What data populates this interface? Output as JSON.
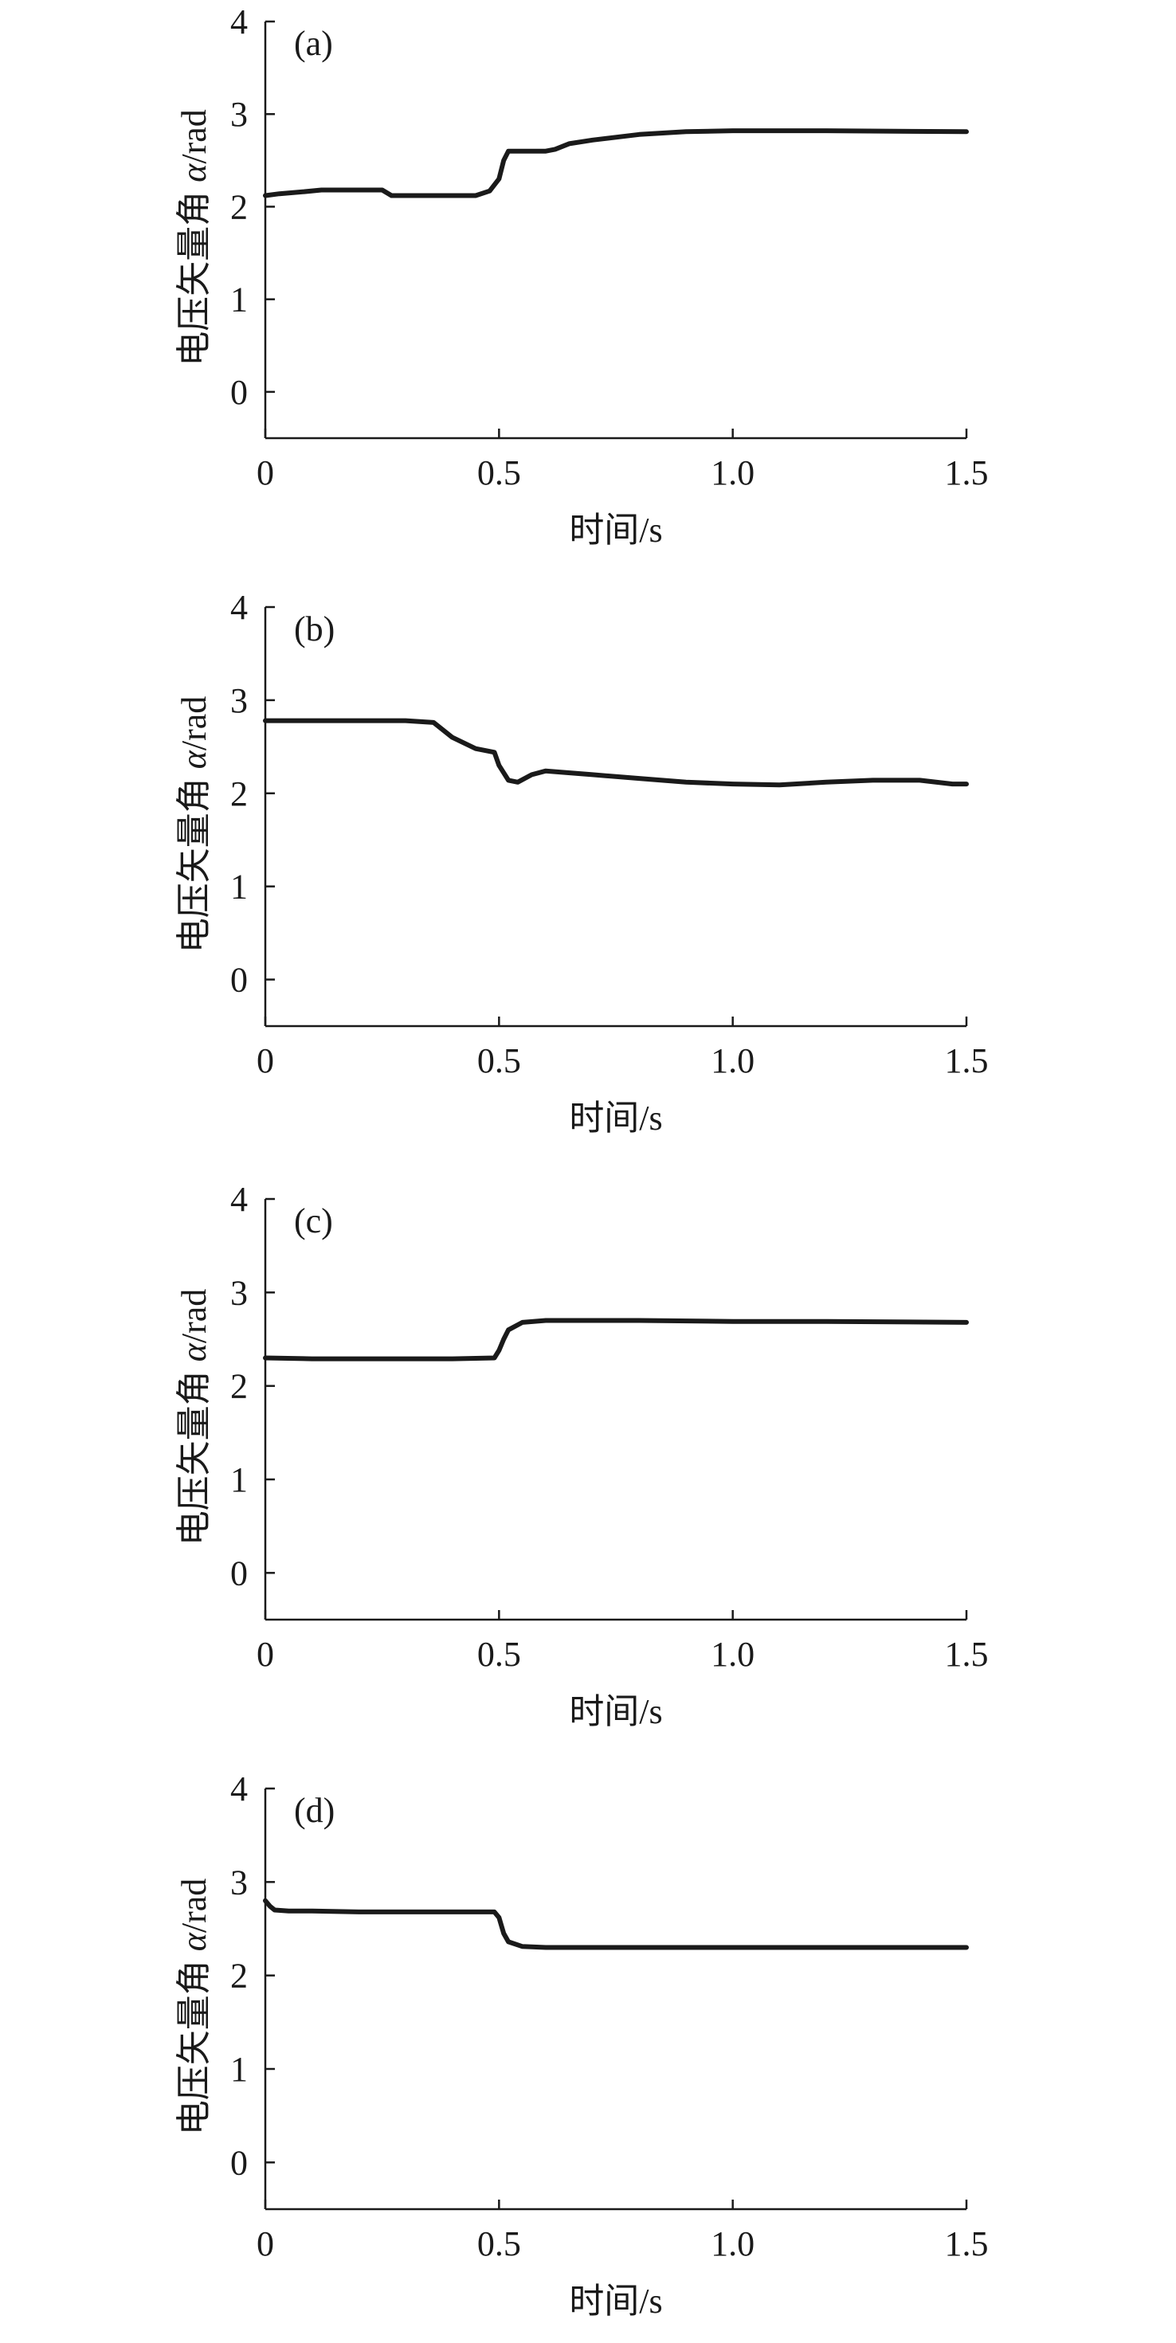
{
  "chart_data": [
    {
      "type": "line",
      "panel_label": "(a)",
      "xlabel": "时间/s",
      "ylabel_prefix": "电压矢量角 ",
      "ylabel_var": "α",
      "ylabel_unit": "/rad",
      "xlim": [
        0,
        1.5
      ],
      "ylim": [
        -0.5,
        4
      ],
      "xticks": [
        0,
        0.5,
        1.0,
        1.5
      ],
      "xtick_labels": [
        "0",
        "0.5",
        "1.0",
        "1.5"
      ],
      "yticks": [
        0,
        1,
        2,
        3,
        4
      ],
      "ytick_labels": [
        "0",
        "1",
        "2",
        "3",
        "4"
      ],
      "series": [
        {
          "x": [
            0,
            0.03,
            0.08,
            0.12,
            0.2,
            0.25,
            0.27,
            0.35,
            0.45,
            0.48,
            0.5,
            0.51,
            0.52,
            0.55,
            0.6,
            0.62,
            0.65,
            0.7,
            0.8,
            0.9,
            1.0,
            1.2,
            1.5
          ],
          "y": [
            2.12,
            2.14,
            2.16,
            2.18,
            2.18,
            2.18,
            2.12,
            2.12,
            2.12,
            2.17,
            2.3,
            2.5,
            2.6,
            2.6,
            2.6,
            2.62,
            2.68,
            2.72,
            2.78,
            2.81,
            2.82,
            2.82,
            2.81
          ]
        }
      ]
    },
    {
      "type": "line",
      "panel_label": "(b)",
      "xlabel": "时间/s",
      "ylabel_prefix": "电压矢量角 ",
      "ylabel_var": "α",
      "ylabel_unit": "/rad",
      "xlim": [
        0,
        1.5
      ],
      "ylim": [
        -0.5,
        4
      ],
      "xticks": [
        0,
        0.5,
        1.0,
        1.5
      ],
      "xtick_labels": [
        "0",
        "0.5",
        "1.0",
        "1.5"
      ],
      "yticks": [
        0,
        1,
        2,
        3,
        4
      ],
      "ytick_labels": [
        "0",
        "1",
        "2",
        "3",
        "4"
      ],
      "series": [
        {
          "x": [
            0,
            0.1,
            0.2,
            0.3,
            0.36,
            0.4,
            0.45,
            0.49,
            0.5,
            0.52,
            0.54,
            0.57,
            0.6,
            0.7,
            0.8,
            0.9,
            1.0,
            1.1,
            1.2,
            1.3,
            1.4,
            1.47,
            1.5
          ],
          "y": [
            2.78,
            2.78,
            2.78,
            2.78,
            2.76,
            2.6,
            2.48,
            2.44,
            2.3,
            2.14,
            2.12,
            2.2,
            2.24,
            2.2,
            2.16,
            2.12,
            2.1,
            2.09,
            2.12,
            2.14,
            2.14,
            2.1,
            2.1
          ]
        }
      ]
    },
    {
      "type": "line",
      "panel_label": "(c)",
      "xlabel": "时间/s",
      "ylabel_prefix": "电压矢量角 ",
      "ylabel_var": "α",
      "ylabel_unit": "/rad",
      "xlim": [
        0,
        1.5
      ],
      "ylim": [
        -0.5,
        4
      ],
      "xticks": [
        0,
        0.5,
        1.0,
        1.5
      ],
      "xtick_labels": [
        "0",
        "0.5",
        "1.0",
        "1.5"
      ],
      "yticks": [
        0,
        1,
        2,
        3,
        4
      ],
      "ytick_labels": [
        "0",
        "1",
        "2",
        "3",
        "4"
      ],
      "series": [
        {
          "x": [
            0,
            0.1,
            0.2,
            0.3,
            0.4,
            0.49,
            0.5,
            0.51,
            0.52,
            0.55,
            0.6,
            0.8,
            1.0,
            1.2,
            1.5
          ],
          "y": [
            2.3,
            2.29,
            2.29,
            2.29,
            2.29,
            2.3,
            2.38,
            2.5,
            2.6,
            2.68,
            2.7,
            2.7,
            2.69,
            2.69,
            2.68
          ]
        }
      ]
    },
    {
      "type": "line",
      "panel_label": "(d)",
      "xlabel": "时间/s",
      "ylabel_prefix": "电压矢量角 ",
      "ylabel_var": "α",
      "ylabel_unit": "/rad",
      "xlim": [
        0,
        1.5
      ],
      "ylim": [
        -0.5,
        4
      ],
      "xticks": [
        0,
        0.5,
        1.0,
        1.5
      ],
      "xtick_labels": [
        "0",
        "0.5",
        "1.0",
        "1.5"
      ],
      "yticks": [
        0,
        1,
        2,
        3,
        4
      ],
      "ytick_labels": [
        "0",
        "1",
        "2",
        "3",
        "4"
      ],
      "series": [
        {
          "x": [
            0,
            0.01,
            0.02,
            0.05,
            0.1,
            0.2,
            0.3,
            0.4,
            0.49,
            0.5,
            0.51,
            0.52,
            0.55,
            0.6,
            0.8,
            1.0,
            1.2,
            1.5
          ],
          "y": [
            2.8,
            2.74,
            2.7,
            2.69,
            2.69,
            2.68,
            2.68,
            2.68,
            2.68,
            2.62,
            2.45,
            2.36,
            2.31,
            2.3,
            2.3,
            2.3,
            2.3,
            2.3
          ]
        }
      ]
    }
  ]
}
